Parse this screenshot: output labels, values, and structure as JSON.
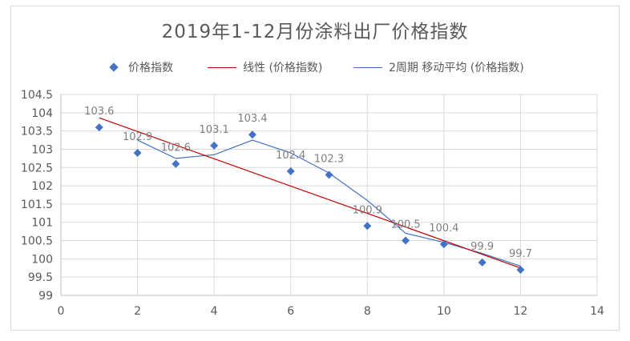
{
  "chart_data": {
    "type": "scatter",
    "title": "2019年1-12月份涂料出厂价格指数",
    "xlabel": "",
    "ylabel": "",
    "xlim": [
      0,
      14
    ],
    "ylim": [
      99,
      104.5
    ],
    "x_ticks": [
      0,
      2,
      4,
      6,
      8,
      10,
      12,
      14
    ],
    "y_ticks": [
      99,
      99.5,
      100,
      100.5,
      101,
      101.5,
      102,
      102.5,
      103,
      103.5,
      104,
      104.5
    ],
    "grid": true,
    "legend_position": "top",
    "series": [
      {
        "name": "价格指数",
        "kind": "scatter",
        "color": "#4472c4",
        "x": [
          1,
          2,
          3,
          4,
          5,
          6,
          7,
          8,
          9,
          10,
          11,
          12
        ],
        "y": [
          103.6,
          102.9,
          102.6,
          103.1,
          103.4,
          102.4,
          102.3,
          100.9,
          100.5,
          100.4,
          99.9,
          99.7
        ],
        "labels": [
          "103.6",
          "102.9",
          "102.6",
          "103.1",
          "103.4",
          "102.4",
          "102.3",
          "100.9",
          "100.5",
          "100.4",
          "99.9",
          "99.7"
        ]
      },
      {
        "name": "线性 (价格指数)",
        "kind": "trendline",
        "color": "#c00000",
        "x": [
          1,
          12
        ],
        "y": [
          103.86,
          99.75
        ]
      },
      {
        "name": "2周期 移动平均 (价格指数)",
        "kind": "moving-average",
        "color": "#4472c4",
        "x": [
          2,
          3,
          4,
          5,
          6,
          7,
          8,
          9,
          10,
          11,
          12
        ],
        "y": [
          103.25,
          102.75,
          102.85,
          103.25,
          102.9,
          102.35,
          101.6,
          100.7,
          100.45,
          100.15,
          99.8
        ]
      }
    ]
  }
}
